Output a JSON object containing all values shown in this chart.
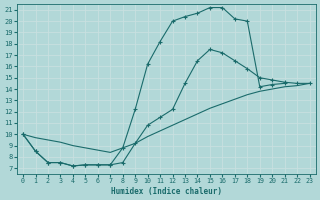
{
  "background_color": "#b2d8d8",
  "grid_color": "#d4eded",
  "line_color": "#1a6b6b",
  "xlabel": "Humidex (Indice chaleur)",
  "xlim": [
    -0.5,
    23.5
  ],
  "ylim": [
    6.5,
    21.5
  ],
  "xticks": [
    0,
    1,
    2,
    3,
    4,
    5,
    6,
    7,
    8,
    9,
    10,
    11,
    12,
    13,
    14,
    15,
    16,
    17,
    18,
    19,
    20,
    21,
    22,
    23
  ],
  "yticks": [
    7,
    8,
    9,
    10,
    11,
    12,
    13,
    14,
    15,
    16,
    17,
    18,
    19,
    20,
    21
  ],
  "curve1_x": [
    0,
    1,
    2,
    3,
    4,
    5,
    6,
    7,
    8,
    9,
    10,
    11,
    12,
    13,
    14,
    15,
    16,
    17,
    18,
    19,
    20,
    21
  ],
  "curve1_y": [
    10,
    8.5,
    7.5,
    7.5,
    7.2,
    7.3,
    7.3,
    7.3,
    8.8,
    12.2,
    16.2,
    18.2,
    20.0,
    20.4,
    20.7,
    21.2,
    21.2,
    20.2,
    20.0,
    14.2,
    14.4,
    14.5
  ],
  "curve2_x": [
    0,
    1,
    2,
    3,
    4,
    5,
    6,
    7,
    8,
    9,
    10,
    11,
    12,
    13,
    14,
    15,
    16,
    17,
    18,
    19,
    20,
    21,
    22,
    23
  ],
  "curve2_y": [
    10,
    8.5,
    7.5,
    7.5,
    7.2,
    7.3,
    7.3,
    7.3,
    7.5,
    9.2,
    10.8,
    11.5,
    12.2,
    14.5,
    16.5,
    17.5,
    17.2,
    16.5,
    15.8,
    15.0,
    14.8,
    14.6,
    14.5,
    14.5
  ],
  "curve3_x": [
    0,
    1,
    2,
    3,
    4,
    5,
    6,
    7,
    8,
    9,
    10,
    11,
    12,
    13,
    14,
    15,
    16,
    17,
    18,
    19,
    20,
    21,
    22,
    23
  ],
  "curve3_y": [
    10,
    9.7,
    9.5,
    9.3,
    9.0,
    8.8,
    8.6,
    8.4,
    8.8,
    9.2,
    9.8,
    10.3,
    10.8,
    11.3,
    11.8,
    12.3,
    12.7,
    13.1,
    13.5,
    13.8,
    14.0,
    14.2,
    14.3,
    14.5
  ]
}
